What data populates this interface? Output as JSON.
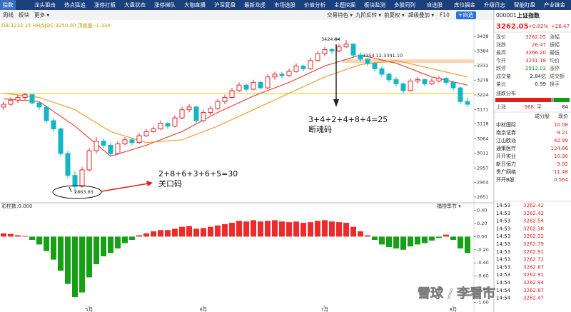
{
  "nav": [
    "指数",
    "龙头狙击",
    "热点猛追",
    "涨停打板",
    "大盘状态",
    "涨停梯队",
    "大咖直播",
    "沪深复盘",
    "最新龙虎",
    "市场选股",
    "价值分析",
    "主题挖掘",
    "板块监测",
    "多股同列",
    "自选股",
    "席位掘金",
    "升级日志",
    "智能盯盘",
    "产业链金"
  ],
  "toolbar": {
    "left": [
      "周线",
      "板块",
      "更多 ▾"
    ],
    "right": [
      "交易特色 ▾",
      "九阶反转 ▾",
      "前复权 ▾",
      "超级叠加 ▾",
      "F10",
      "+自选"
    ]
  },
  "main": {
    "indicator_text": "DB:3232.15  HHJSJDC:3250.00  顶底鉴:-1.334",
    "ylim": [
      2835,
      3493
    ],
    "yticks": [
      3438,
      3384,
      3331,
      3278,
      3224,
      3171,
      3118,
      3064,
      3011,
      2957,
      2904,
      2851
    ],
    "up_color": "#e8262a",
    "down_color": "#13b5c6",
    "candles": [
      [
        3180,
        3200,
        3170,
        3190
      ],
      [
        3190,
        3215,
        3185,
        3205
      ],
      [
        3205,
        3225,
        3195,
        3215
      ],
      [
        3215,
        3232,
        3205,
        3225
      ],
      [
        3225,
        3228,
        3190,
        3195
      ],
      [
        3195,
        3200,
        3170,
        3180
      ],
      [
        3180,
        3185,
        3120,
        3130
      ],
      [
        3130,
        3140,
        3090,
        3100
      ],
      [
        3100,
        3105,
        3000,
        3010
      ],
      [
        3010,
        3020,
        2920,
        2930
      ],
      [
        2930,
        2945,
        2863.65,
        2890
      ],
      [
        2890,
        2960,
        2885,
        2950
      ],
      [
        2950,
        3030,
        2945,
        3020
      ],
      [
        3020,
        3070,
        3010,
        3055
      ],
      [
        3055,
        3065,
        3030,
        3040
      ],
      [
        3040,
        3050,
        3000,
        3010
      ],
      [
        3010,
        3055,
        3005,
        3045
      ],
      [
        3045,
        3070,
        3040,
        3060
      ],
      [
        3060,
        3065,
        3040,
        3050
      ],
      [
        3050,
        3085,
        3045,
        3075
      ],
      [
        3075,
        3100,
        3070,
        3090
      ],
      [
        3090,
        3110,
        3085,
        3100
      ],
      [
        3100,
        3130,
        3095,
        3120
      ],
      [
        3120,
        3125,
        3100,
        3110
      ],
      [
        3110,
        3150,
        3105,
        3140
      ],
      [
        3140,
        3180,
        3135,
        3170
      ],
      [
        3170,
        3190,
        3160,
        3180
      ],
      [
        3180,
        3185,
        3120,
        3130
      ],
      [
        3130,
        3170,
        3125,
        3160
      ],
      [
        3160,
        3185,
        3150,
        3175
      ],
      [
        3175,
        3210,
        3170,
        3200
      ],
      [
        3200,
        3225,
        3190,
        3215
      ],
      [
        3215,
        3250,
        3210,
        3240
      ],
      [
        3240,
        3270,
        3235,
        3260
      ],
      [
        3260,
        3265,
        3235,
        3245
      ],
      [
        3245,
        3280,
        3240,
        3270
      ],
      [
        3270,
        3275,
        3245,
        3250
      ],
      [
        3250,
        3300,
        3245,
        3290
      ],
      [
        3290,
        3310,
        3280,
        3300
      ],
      [
        3300,
        3308,
        3285,
        3295
      ],
      [
        3295,
        3320,
        3290,
        3310
      ],
      [
        3310,
        3340,
        3305,
        3330
      ],
      [
        3330,
        3335,
        3310,
        3320
      ],
      [
        3320,
        3360,
        3315,
        3350
      ],
      [
        3350,
        3385,
        3345,
        3375
      ],
      [
        3375,
        3400,
        3365,
        3390
      ],
      [
        3390,
        3395,
        3375,
        3385
      ],
      [
        3385,
        3410,
        3380,
        3400
      ],
      [
        3400,
        3424.84,
        3395,
        3410
      ],
      [
        3410,
        3412,
        3360,
        3370
      ],
      [
        3370,
        3380,
        3345,
        3355
      ],
      [
        3355,
        3360,
        3330,
        3340
      ],
      [
        3340,
        3345,
        3310,
        3320
      ],
      [
        3320,
        3328,
        3290,
        3300
      ],
      [
        3300,
        3305,
        3270,
        3280
      ],
      [
        3280,
        3290,
        3255,
        3265
      ],
      [
        3265,
        3270,
        3230,
        3240
      ],
      [
        3240,
        3285,
        3235,
        3275
      ],
      [
        3275,
        3290,
        3265,
        3280
      ],
      [
        3280,
        3285,
        3255,
        3265
      ],
      [
        3265,
        3285,
        3260,
        3275
      ],
      [
        3275,
        3295,
        3270,
        3285
      ],
      [
        3285,
        3290,
        3260,
        3270
      ],
      [
        3270,
        3275,
        3240,
        3250
      ],
      [
        3250,
        3255,
        3190,
        3200
      ],
      [
        3200,
        3215,
        3180,
        3190
      ]
    ],
    "ma": [
      {
        "color": "#e0503c",
        "x": [
          0,
          5,
          10,
          15,
          20,
          25,
          30,
          35,
          40,
          45,
          50,
          55,
          60,
          65
        ],
        "values": [
          3210,
          3200,
          3110,
          3000,
          3040,
          3090,
          3160,
          3220,
          3270,
          3330,
          3370,
          3340,
          3290,
          3260
        ]
      },
      {
        "color": "#f0a030",
        "x": [
          0,
          5,
          10,
          15,
          20,
          25,
          30,
          35,
          40,
          45,
          50,
          55,
          60,
          65
        ],
        "values": [
          3230,
          3215,
          3170,
          3090,
          3050,
          3060,
          3110,
          3170,
          3230,
          3290,
          3335,
          3350,
          3320,
          3290
        ]
      }
    ],
    "level": {
      "value": 3230,
      "color": "#e6d400"
    },
    "band": {
      "values": [
        3341.1,
        3354.12
      ],
      "color": "#f8c9a0",
      "label": "3354.12-3341.10"
    },
    "low_label": "2863.65",
    "high_label": "3424.84",
    "note1": [
      "2+8+6+3+6+5=30",
      "关口码"
    ],
    "note2": [
      "3+4+2+4+8+4=25",
      "断魂码"
    ]
  },
  "sub": {
    "title": "彩柱数:0.000",
    "selector": "捕捞季节 ▾",
    "ylim": [
      -1.05,
      0.45
    ],
    "yticks": [
      {
        "value": 0.4,
        "label": "0.40"
      },
      {
        "value": 0.2,
        "label": "0.20"
      },
      {
        "value": 0,
        "label": "0.00"
      },
      {
        "value": -0.2,
        "label": "-0.20"
      },
      {
        "value": -0.4,
        "label": "-0.40"
      },
      {
        "value": -0.6,
        "label": "-0.60"
      },
      {
        "value": -0.8,
        "label": "-0.80"
      },
      {
        "value": -1.0,
        "label": "-1.00"
      }
    ],
    "pos_color": "#ee2b2b",
    "neg_color": "#16a016",
    "values": [
      0.05,
      0.04,
      0.02,
      0.01,
      -0.05,
      -0.12,
      -0.22,
      -0.35,
      -0.52,
      -0.72,
      -0.92,
      -0.85,
      -0.62,
      -0.42,
      -0.3,
      -0.25,
      -0.18,
      -0.1,
      -0.05,
      0.02,
      0.05,
      0.08,
      0.1,
      0.1,
      0.12,
      0.15,
      0.16,
      0.12,
      0.13,
      0.15,
      0.17,
      0.19,
      0.21,
      0.24,
      0.23,
      0.25,
      0.23,
      0.24,
      0.25,
      0.23,
      0.22,
      0.23,
      0.21,
      0.22,
      0.24,
      0.25,
      0.23,
      0.22,
      0.21,
      0.15,
      0.08,
      0.02,
      -0.05,
      -0.12,
      -0.16,
      -0.18,
      -0.2,
      -0.15,
      -0.12,
      -0.1,
      -0.06,
      -0.02,
      0.03,
      -0.05,
      -0.18,
      -0.25
    ]
  },
  "x_labels": [
    null,
    null,
    null,
    null,
    null,
    null,
    null,
    null,
    null,
    null,
    null,
    null,
    "5月",
    null,
    null,
    null,
    null,
    null,
    null,
    null,
    null,
    null,
    null,
    null,
    null,
    null,
    null,
    null,
    "6月",
    null,
    null,
    null,
    null,
    null,
    null,
    null,
    null,
    null,
    null,
    null,
    null,
    null,
    null,
    null,
    null,
    "7月",
    null,
    null,
    null,
    null,
    null,
    null,
    null,
    null,
    null,
    null,
    null,
    null,
    null,
    null,
    null,
    null,
    null,
    "8月",
    null,
    null
  ],
  "quote": {
    "code": "000001",
    "name": "上证指数",
    "price": "3262.05",
    "change_pct": "+0.82%",
    "change": "+26.47",
    "fields": [
      [
        "现价",
        "3262.05",
        "涨幅"
      ],
      [
        "涨跌",
        "26.47",
        "振幅"
      ],
      [
        "最高",
        "3266.20",
        "最低"
      ],
      [
        "今开",
        "3241.18",
        "均价"
      ],
      [
        "跌停",
        "2912.03",
        "涨停"
      ],
      [
        "成交量",
        "2.84亿",
        "成交额"
      ],
      [
        "量比",
        "0.99",
        "换手"
      ]
    ],
    "dist_title": "涨跌分布",
    "up_label": "上涨",
    "up": "968",
    "flat_label": "平",
    "flat": "84",
    "stocks_header": [
      "成分股",
      "现价"
    ],
    "stocks": [
      [
        "中材国际",
        "10.08"
      ],
      [
        "南京证券",
        "9.21"
      ],
      [
        "江山欧派",
        "42.99"
      ],
      [
        "通策医疗",
        "124.66"
      ],
      [
        "开开实业",
        "10.90"
      ],
      [
        "新日恒力",
        "9.92"
      ],
      [
        "贵广网络",
        "11.48"
      ],
      [
        "开开B股",
        "0.564"
      ]
    ],
    "ticks": [
      [
        "14:53",
        "3262.42"
      ],
      [
        "14:53",
        "3262.42"
      ],
      [
        "14:53",
        "3262.54"
      ],
      [
        "14:53",
        "3262.38"
      ],
      [
        "14:53",
        "3262.32"
      ],
      [
        "14:53",
        "3262.79"
      ],
      [
        "14:53",
        "3262.91"
      ],
      [
        "14:53",
        "3262.72"
      ],
      [
        "14:53",
        "3262.87"
      ],
      [
        "14:53",
        "3262.91"
      ],
      [
        "14:54",
        "3262.94"
      ],
      [
        "14:54",
        "3262.67"
      ],
      [
        "14:54",
        "3262.47"
      ]
    ]
  },
  "watermark": "雪球 / 李看市"
}
